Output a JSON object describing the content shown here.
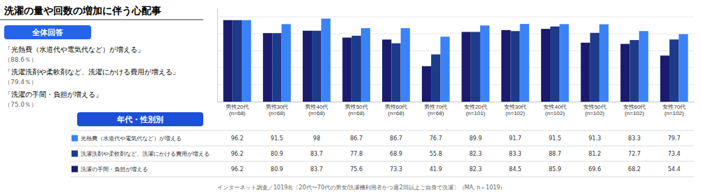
{
  "chart_data": {
    "type": "bar",
    "title": "洗濯の量や回数の増加に伴う心配事",
    "annotations": [
      "全体回答",
      "「光熱費（水道代や電気代など）が増える」",
      "（88.6％）",
      "「洗濯洗剤や柔軟剤など、洗濯にかける費用が増える」",
      "（79.4％）",
      "「洗濯の手間・負担が増える」",
      "（75.0％）",
      "年代・性別別",
      "インターネット調査／1019名〔20代〜70代の男女/洗濯機利用者かつ週2回以上ご自身で洗濯〕（MA, n＝1019）"
    ],
    "categories": [
      "男性20代\n(n=68)",
      "男性30代\n(n=68)",
      "男性40代\n(n=68)",
      "男性50代\n(n=68)",
      "男性60代\n(n=68)",
      "男性70代\n(n=68)",
      "女性20代\n(n=101)",
      "女性30代\n(n=102)",
      "女性40代\n(n=102)",
      "女性50代\n(n=102)",
      "女性60代\n(n=102)",
      "女性70代\n(n=102)"
    ],
    "series": [
      {
        "name": "洗濯の手間・負担が増える",
        "color": "#1a1a6e",
        "values": [
          96.2,
          80.9,
          83.7,
          75.6,
          73.3,
          41.9,
          82.3,
          84.5,
          85.9,
          69.6,
          68.2,
          54.4
        ]
      },
      {
        "name": "洗濯洗剤や柔軟剤など、洗濯にかける費用が増える",
        "color": "#1e3a8a",
        "values": [
          96.2,
          80.9,
          83.7,
          77.8,
          68.9,
          55.8,
          82.3,
          83.3,
          88.7,
          81.2,
          72.7,
          73.4
        ]
      },
      {
        "name": "光熱費（水道代や電気代など）が増える",
        "color": "#3b82f6",
        "values": [
          96.2,
          91.5,
          98.0,
          86.7,
          86.7,
          76.7,
          89.9,
          91.7,
          91.5,
          91.3,
          83.3,
          79.7
        ]
      }
    ],
    "ylim": [
      0,
      110
    ],
    "yticks": [
      0,
      20,
      40,
      60,
      80,
      100
    ],
    "grid": true,
    "tick_labels": "x",
    "legend": "bottom",
    "data_labels": true
  }
}
